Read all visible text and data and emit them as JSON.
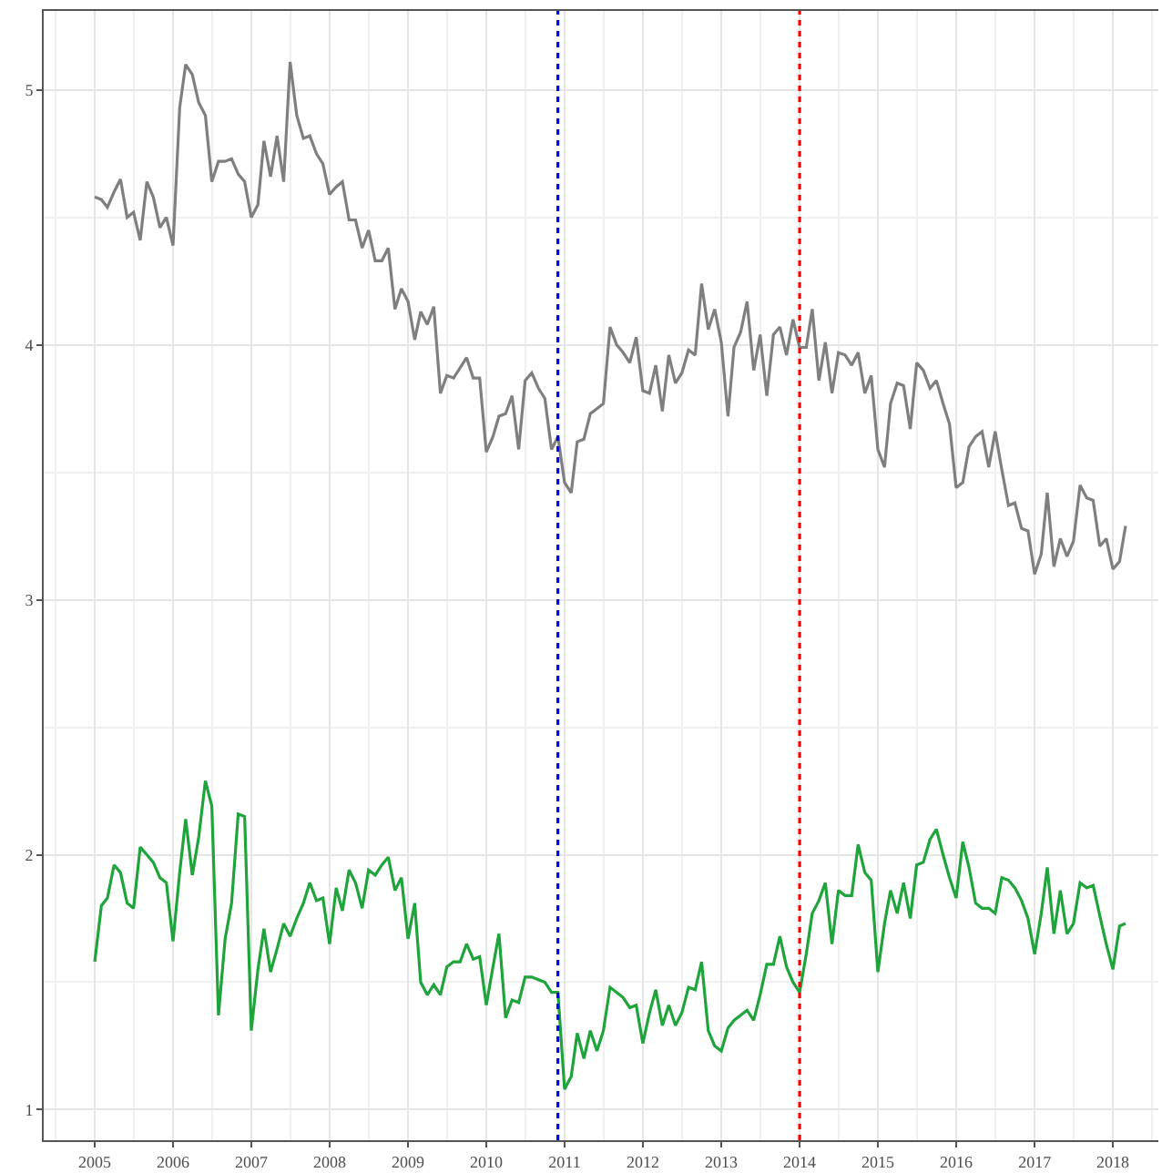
{
  "chart_data": {
    "type": "line",
    "x": [
      "2005-01",
      "2005-02",
      "2005-03",
      "2005-04",
      "2005-05",
      "2005-06",
      "2005-07",
      "2005-08",
      "2005-09",
      "2005-10",
      "2005-11",
      "2005-12",
      "2006-01",
      "2006-02",
      "2006-03",
      "2006-04",
      "2006-05",
      "2006-06",
      "2006-07",
      "2006-08",
      "2006-09",
      "2006-10",
      "2006-11",
      "2006-12",
      "2007-01",
      "2007-02",
      "2007-03",
      "2007-04",
      "2007-05",
      "2007-06",
      "2007-07",
      "2007-08",
      "2007-09",
      "2007-10",
      "2007-11",
      "2007-12",
      "2008-01",
      "2008-02",
      "2008-03",
      "2008-04",
      "2008-05",
      "2008-06",
      "2008-07",
      "2008-08",
      "2008-09",
      "2008-10",
      "2008-11",
      "2008-12",
      "2009-01",
      "2009-02",
      "2009-03",
      "2009-04",
      "2009-05",
      "2009-06",
      "2009-07",
      "2009-08",
      "2009-09",
      "2009-10",
      "2009-11",
      "2009-12",
      "2010-01",
      "2010-02",
      "2010-03",
      "2010-04",
      "2010-05",
      "2010-06",
      "2010-07",
      "2010-08",
      "2010-09",
      "2010-10",
      "2010-11",
      "2010-12",
      "2011-01",
      "2011-02",
      "2011-03",
      "2011-04",
      "2011-05",
      "2011-06",
      "2011-07",
      "2011-08",
      "2011-09",
      "2011-10",
      "2011-11",
      "2011-12",
      "2012-01",
      "2012-02",
      "2012-03",
      "2012-04",
      "2012-05",
      "2012-06",
      "2012-07",
      "2012-08",
      "2012-09",
      "2012-10",
      "2012-11",
      "2012-12",
      "2013-01",
      "2013-02",
      "2013-03",
      "2013-04",
      "2013-05",
      "2013-06",
      "2013-07",
      "2013-08",
      "2013-09",
      "2013-10",
      "2013-11",
      "2013-12",
      "2014-01",
      "2014-02",
      "2014-03",
      "2014-04",
      "2014-05",
      "2014-06",
      "2014-07",
      "2014-08",
      "2014-09",
      "2014-10",
      "2014-11",
      "2014-12",
      "2015-01",
      "2015-02",
      "2015-03",
      "2015-04",
      "2015-05",
      "2015-06",
      "2015-07",
      "2015-08",
      "2015-09",
      "2015-10",
      "2015-11",
      "2015-12",
      "2016-01",
      "2016-02",
      "2016-03",
      "2016-04",
      "2016-05",
      "2016-06",
      "2016-07",
      "2016-08",
      "2016-09",
      "2016-10",
      "2016-11",
      "2016-12",
      "2017-01",
      "2017-02",
      "2017-03",
      "2017-04",
      "2017-05",
      "2017-06",
      "2017-07",
      "2017-08",
      "2017-09",
      "2017-10",
      "2017-11",
      "2017-12",
      "2018-01",
      "2018-02",
      "2018-03"
    ],
    "series": [
      {
        "color": "#7f7f7f",
        "values": [
          4.58,
          4.57,
          4.54,
          4.6,
          4.65,
          4.5,
          4.52,
          4.41,
          4.64,
          4.58,
          4.46,
          4.5,
          4.39,
          4.93,
          5.1,
          5.06,
          4.95,
          4.9,
          4.64,
          4.72,
          4.72,
          4.73,
          4.67,
          4.64,
          4.5,
          4.55,
          4.8,
          4.66,
          4.82,
          4.64,
          5.11,
          4.9,
          4.81,
          4.82,
          4.75,
          4.71,
          4.59,
          4.62,
          4.64,
          4.49,
          4.49,
          4.38,
          4.45,
          4.33,
          4.33,
          4.38,
          4.14,
          4.22,
          4.17,
          4.02,
          4.13,
          4.08,
          4.15,
          3.81,
          3.88,
          3.87,
          3.91,
          3.95,
          3.87,
          3.87,
          3.58,
          3.64,
          3.72,
          3.73,
          3.8,
          3.59,
          3.86,
          3.89,
          3.83,
          3.79,
          3.59,
          3.64,
          3.46,
          3.42,
          3.62,
          3.63,
          3.73,
          3.75,
          3.77,
          4.07,
          4.0,
          3.97,
          3.93,
          4.03,
          3.82,
          3.81,
          3.92,
          3.74,
          3.96,
          3.85,
          3.89,
          3.98,
          3.96,
          4.24,
          4.06,
          4.14,
          4.01,
          3.72,
          3.99,
          4.05,
          4.17,
          3.9,
          4.04,
          3.8,
          4.04,
          4.07,
          3.96,
          4.1,
          3.99,
          3.99,
          4.14,
          3.86,
          4.01,
          3.81,
          3.97,
          3.96,
          3.92,
          3.97,
          3.81,
          3.88,
          3.59,
          3.52,
          3.77,
          3.85,
          3.84,
          3.67,
          3.93,
          3.9,
          3.83,
          3.86,
          3.77,
          3.69,
          3.44,
          3.46,
          3.6,
          3.64,
          3.66,
          3.52,
          3.66,
          3.51,
          3.37,
          3.38,
          3.28,
          3.27,
          3.1,
          3.18,
          3.42,
          3.13,
          3.24,
          3.17,
          3.23,
          3.45,
          3.4,
          3.39,
          3.21,
          3.24,
          3.12,
          3.15,
          3.29
        ]
      },
      {
        "color": "#1ea43a",
        "values": [
          1.58,
          1.8,
          1.83,
          1.96,
          1.93,
          1.81,
          1.79,
          2.03,
          2.0,
          1.97,
          1.91,
          1.89,
          1.66,
          1.93,
          2.14,
          1.92,
          2.07,
          2.29,
          2.19,
          1.37,
          1.67,
          1.81,
          2.16,
          2.15,
          1.31,
          1.55,
          1.71,
          1.54,
          1.63,
          1.73,
          1.68,
          1.75,
          1.81,
          1.89,
          1.82,
          1.83,
          1.65,
          1.87,
          1.78,
          1.94,
          1.89,
          1.79,
          1.94,
          1.92,
          1.96,
          1.99,
          1.86,
          1.91,
          1.67,
          1.81,
          1.5,
          1.45,
          1.49,
          1.45,
          1.56,
          1.58,
          1.58,
          1.65,
          1.59,
          1.6,
          1.41,
          1.56,
          1.69,
          1.36,
          1.43,
          1.42,
          1.52,
          1.52,
          1.51,
          1.5,
          1.46,
          1.46,
          1.08,
          1.13,
          1.3,
          1.2,
          1.31,
          1.23,
          1.31,
          1.48,
          1.46,
          1.44,
          1.4,
          1.41,
          1.26,
          1.38,
          1.47,
          1.33,
          1.41,
          1.33,
          1.38,
          1.48,
          1.47,
          1.58,
          1.31,
          1.25,
          1.23,
          1.32,
          1.35,
          1.37,
          1.39,
          1.35,
          1.45,
          1.57,
          1.57,
          1.68,
          1.56,
          1.5,
          1.46,
          1.61,
          1.77,
          1.82,
          1.89,
          1.65,
          1.86,
          1.84,
          1.84,
          2.04,
          1.93,
          1.9,
          1.54,
          1.73,
          1.86,
          1.77,
          1.89,
          1.75,
          1.96,
          1.97,
          2.06,
          2.1,
          2.0,
          1.91,
          1.83,
          2.05,
          1.95,
          1.81,
          1.79,
          1.79,
          1.77,
          1.91,
          1.9,
          1.87,
          1.82,
          1.75,
          1.61,
          1.77,
          1.95,
          1.69,
          1.86,
          1.69,
          1.73,
          1.89,
          1.87,
          1.88,
          1.76,
          1.65,
          1.55,
          1.72,
          1.73
        ]
      }
    ],
    "xlim": [
      "2004-05-08",
      "2018-08-01"
    ],
    "xticks": [
      "2005",
      "2006",
      "2007",
      "2008",
      "2009",
      "2010",
      "2011",
      "2012",
      "2013",
      "2014",
      "2015",
      "2016",
      "2017",
      "2018"
    ],
    "ylim": [
      0.88,
      5.31
    ],
    "yticks": [
      1,
      2,
      3,
      4,
      5
    ],
    "grid": true,
    "ref_lines": [
      {
        "axis": "x",
        "value": "2010-12",
        "color": "#0000ff",
        "line_style": "dotted"
      },
      {
        "axis": "x",
        "value": "2014-01",
        "color": "#ff0000",
        "line_style": "dotted"
      }
    ]
  }
}
